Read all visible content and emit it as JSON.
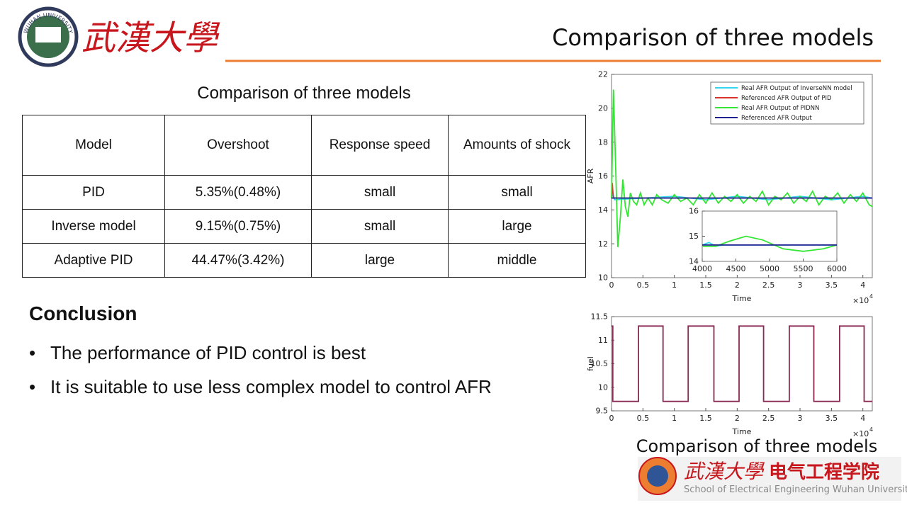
{
  "header": {
    "title": "Comparison of three models",
    "university_cn": "武漢大學",
    "seal_text": "WUHAN UNIVERSITY"
  },
  "table": {
    "title": "Comparison of three models",
    "columns": [
      "Model",
      "Overshoot",
      "Response speed",
      "Amounts of shock"
    ],
    "rows": [
      [
        "PID",
        "5.35%(0.48%)",
        "small",
        "small"
      ],
      [
        "Inverse model",
        "9.15%(0.75%)",
        "small",
        "large"
      ],
      [
        "Adaptive PID",
        "44.47%(3.42%)",
        "large",
        "middle"
      ]
    ]
  },
  "conclusion": {
    "title": "Conclusion",
    "bullets": [
      "The performance of PID control is best",
      "It is suitable to use less complex model to control AFR"
    ]
  },
  "chart_data": [
    {
      "type": "line",
      "ylabel": "AFR",
      "xlabel": "Time",
      "x_multiplier": "×10",
      "x_multiplier_exp": "4",
      "xlim": [
        0,
        4.15
      ],
      "ylim": [
        10,
        22
      ],
      "xticks": [
        0,
        0.5,
        1,
        1.5,
        2,
        2.5,
        3,
        3.5,
        4
      ],
      "yticks": [
        10,
        12,
        14,
        16,
        18,
        20,
        22
      ],
      "legend": "upper right",
      "series": [
        {
          "name": "Real AFR Output of InverseNN model",
          "color": "#33d6f0",
          "x": [
            0,
            0.02,
            0.05,
            0.5,
            1,
            1.5,
            2,
            2.5,
            3,
            3.5,
            4,
            4.15
          ],
          "values": [
            14.7,
            15.0,
            14.6,
            14.7,
            14.8,
            14.6,
            14.8,
            14.6,
            14.8,
            14.6,
            14.8,
            14.7
          ]
        },
        {
          "name": "Referenced AFR Output of PID",
          "color": "#d9342b",
          "x": [
            0,
            0.01,
            0.03,
            4.15
          ],
          "values": [
            14.7,
            15.6,
            14.7,
            14.7
          ]
        },
        {
          "name": "Real AFR Output of PIDNN",
          "color": "#33e633",
          "x": [
            0,
            0.03,
            0.07,
            0.1,
            0.14,
            0.18,
            0.22,
            0.26,
            0.3,
            0.35,
            0.4,
            0.46,
            0.52,
            0.58,
            0.65,
            0.72,
            0.8,
            0.9,
            1.0,
            1.1,
            1.2,
            1.3,
            1.4,
            1.5,
            1.6,
            1.7,
            1.8,
            1.9,
            2.0,
            2.1,
            2.2,
            2.3,
            2.4,
            2.5,
            2.6,
            2.7,
            2.8,
            2.9,
            3.0,
            3.1,
            3.2,
            3.3,
            3.4,
            3.5,
            3.6,
            3.7,
            3.8,
            3.9,
            4.0,
            4.1,
            4.15
          ],
          "values": [
            14.7,
            21.1,
            16,
            11.8,
            13.5,
            15.8,
            14.2,
            13.6,
            15.0,
            14.5,
            14.3,
            15.0,
            14.3,
            14.7,
            14.3,
            14.9,
            14.6,
            14.4,
            14.9,
            14.5,
            14.7,
            14.3,
            14.9,
            14.4,
            15.0,
            14.4,
            14.8,
            14.5,
            14.9,
            14.4,
            14.8,
            14.5,
            15.1,
            14.3,
            14.8,
            14.6,
            15.0,
            14.4,
            14.8,
            14.5,
            15.1,
            14.3,
            14.8,
            14.6,
            15.0,
            14.4,
            14.9,
            14.5,
            15.0,
            14.3,
            14.2
          ]
        },
        {
          "name": "Referenced AFR Output",
          "color": "#1f1f8f",
          "x": [
            0,
            4.15
          ],
          "values": [
            14.7,
            14.7
          ]
        }
      ],
      "inset": {
        "xlim": [
          4000,
          6000
        ],
        "ylim": [
          14,
          16
        ],
        "xticks": [
          4000,
          4500,
          5000,
          5500,
          6000
        ],
        "yticks": [
          14,
          15,
          16
        ],
        "series": [
          {
            "color": "#33d6f0",
            "x": [
              4000,
              4100,
              4200,
              4300,
              6000
            ],
            "values": [
              14.65,
              14.75,
              14.6,
              14.65,
              14.65
            ]
          },
          {
            "color": "#33e633",
            "x": [
              4000,
              4200,
              4400,
              4650,
              4900,
              5200,
              5500,
              5800,
              6000
            ],
            "values": [
              14.6,
              14.6,
              14.8,
              15.0,
              14.85,
              14.5,
              14.4,
              14.5,
              14.65
            ]
          },
          {
            "color": "#1f1f8f",
            "x": [
              4000,
              6000
            ],
            "values": [
              14.65,
              14.65
            ]
          }
        ]
      }
    },
    {
      "type": "line",
      "ylabel": "fuel",
      "xlabel": "Time",
      "x_multiplier": "×10",
      "x_multiplier_exp": "4",
      "xlim": [
        0,
        4.15
      ],
      "ylim": [
        9.5,
        11.5
      ],
      "xticks": [
        0,
        0.5,
        1,
        1.5,
        2,
        2.5,
        3,
        3.5,
        4
      ],
      "yticks": [
        9.5,
        10,
        10.5,
        11,
        11.5
      ],
      "series": [
        {
          "color": "#8a2a55",
          "x": [
            0,
            0.02,
            0.02,
            0.43,
            0.43,
            0.82,
            0.82,
            1.22,
            1.22,
            1.63,
            1.63,
            2.03,
            2.03,
            2.42,
            2.42,
            2.83,
            2.83,
            3.22,
            3.22,
            3.63,
            3.63,
            4.02,
            4.02,
            4.15
          ],
          "values": [
            11.3,
            11.3,
            9.7,
            9.7,
            11.3,
            11.3,
            9.7,
            9.7,
            11.3,
            11.3,
            9.7,
            9.7,
            11.3,
            11.3,
            9.7,
            9.7,
            11.3,
            11.3,
            9.7,
            9.7,
            11.3,
            11.3,
            9.7,
            9.7
          ]
        }
      ]
    }
  ],
  "figure_caption": "Comparison of three models",
  "footer": {
    "university_cn": "武漢大學",
    "school_cn": "电气工程学院",
    "school_en": "School of Electrical Engineering Wuhan University"
  }
}
